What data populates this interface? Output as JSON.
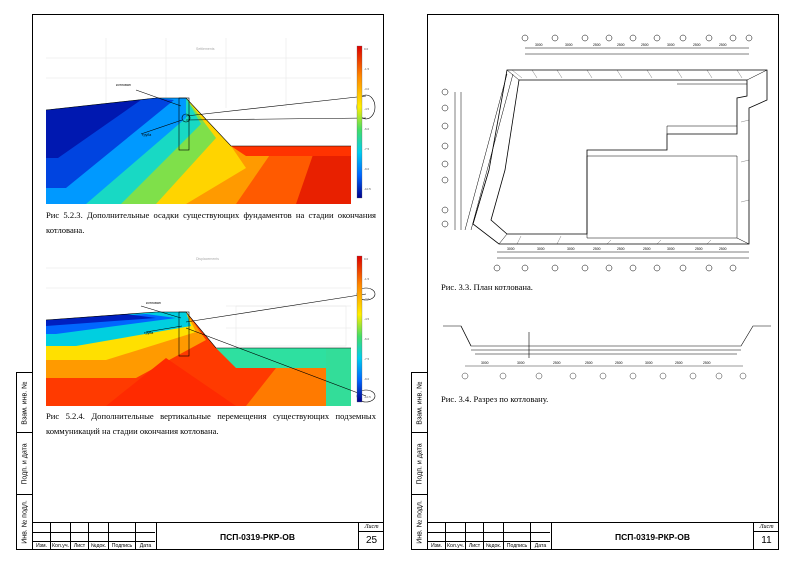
{
  "left_page": {
    "figure1_caption": "Рис 5.2.3. Дополнительные осадки существующих фундаментов на стадии окончания котлована.",
    "figure2_caption": "Рис 5.2.4. Дополнительные вертикальные перемещения существующих подземных коммуникаций на стадии окончания котлована.",
    "doc_code": "ПСП-0319-РКР-ОВ",
    "sheet_label": "Лист",
    "sheet_number": "25"
  },
  "right_page": {
    "figure1_caption": "Рис. 3.3. План котлована.",
    "figure2_caption": "Рис. 3.4. Разрез по котловану.",
    "doc_code": "ПСП-0319-РКР-ОВ",
    "sheet_label": "Лист",
    "sheet_number": "11"
  },
  "side_labels": [
    "Взам. инв. №",
    "Подп. и дата",
    "Инв. № подл."
  ],
  "title_columns": [
    "Изм.",
    "Кол.уч.",
    "Лист",
    "№док.",
    "Подпись",
    "Дата"
  ],
  "colors": {
    "contour_scale": [
      "#00008b",
      "#0033dd",
      "#0088ff",
      "#00ccee",
      "#22dd99",
      "#88ee44",
      "#ddee22",
      "#ffcc00",
      "#ff8800",
      "#ff3300",
      "#dd0000"
    ]
  }
}
